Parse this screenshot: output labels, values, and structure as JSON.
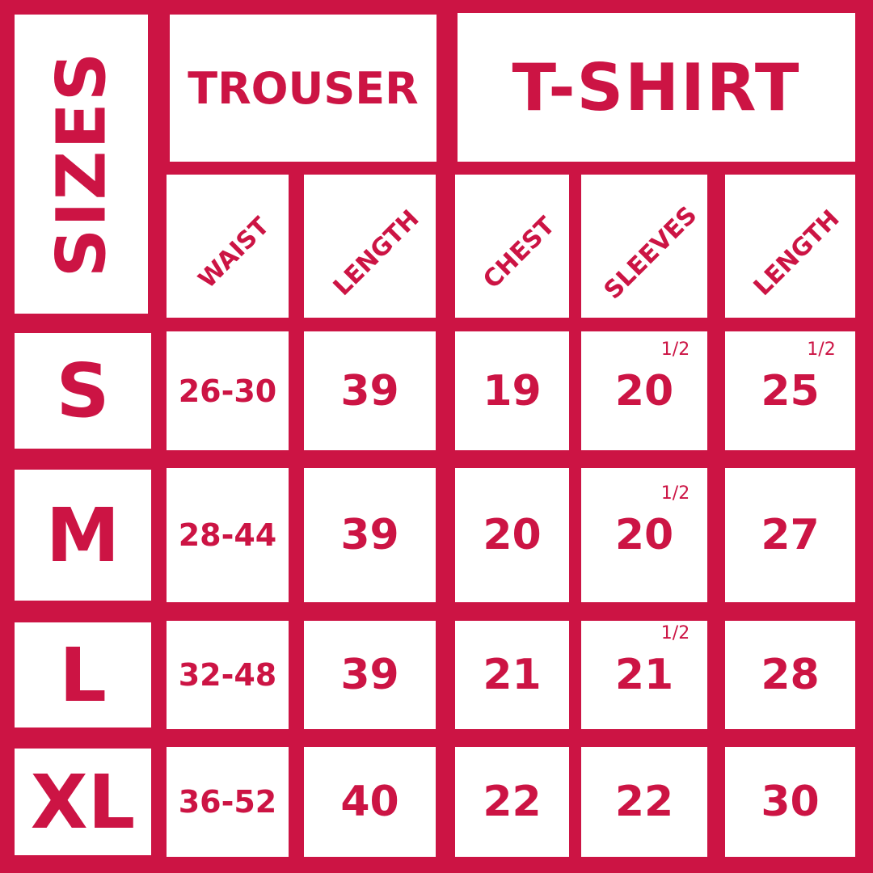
{
  "colors": {
    "brand": "#cc1444",
    "cell": "#ffffff"
  },
  "headers": {
    "sizes": "SIZES",
    "trouser": "TROUSER",
    "tshirt": "T-SHIRT"
  },
  "columns": [
    "WAIST",
    "LENGTH",
    "CHEST",
    "SLEEVES",
    "LENGTH"
  ],
  "rows": [
    {
      "size": "S",
      "values": [
        {
          "v": "26-30"
        },
        {
          "v": "39"
        },
        {
          "v": "19"
        },
        {
          "v": "20",
          "frac": "1/2"
        },
        {
          "v": "25",
          "frac": "1/2"
        }
      ]
    },
    {
      "size": "M",
      "values": [
        {
          "v": "28-44"
        },
        {
          "v": "39"
        },
        {
          "v": "20"
        },
        {
          "v": "20",
          "frac": "1/2"
        },
        {
          "v": "27"
        }
      ]
    },
    {
      "size": "L",
      "values": [
        {
          "v": "32-48"
        },
        {
          "v": "39"
        },
        {
          "v": "21"
        },
        {
          "v": "21",
          "frac": "1/2"
        },
        {
          "v": "28"
        }
      ]
    },
    {
      "size": "XL",
      "values": [
        {
          "v": "36-52"
        },
        {
          "v": "40"
        },
        {
          "v": "22"
        },
        {
          "v": "22"
        },
        {
          "v": "30"
        }
      ]
    }
  ]
}
